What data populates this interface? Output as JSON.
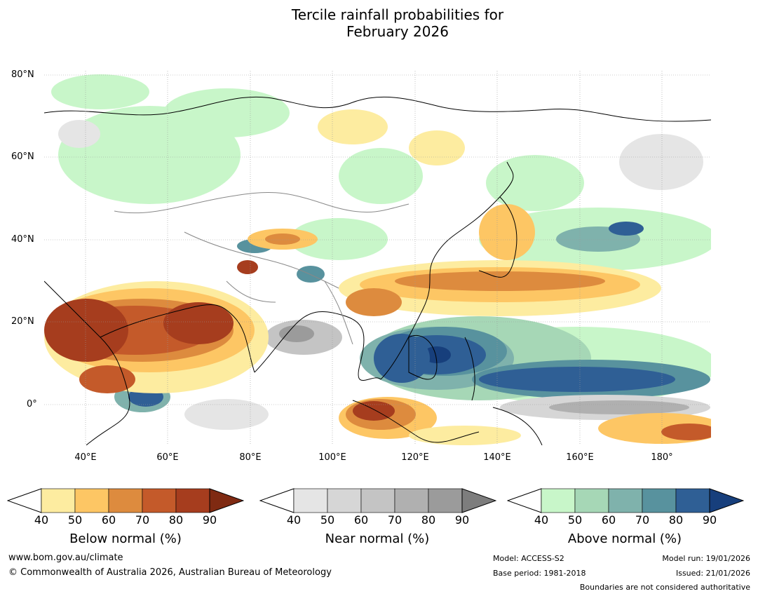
{
  "title_line1": "Tercile rainfall probabilities for",
  "title_line2": "February 2026",
  "lat_labels": [
    "80°N",
    "60°N",
    "40°N",
    "20°N",
    "0°"
  ],
  "lon_labels": [
    "40°E",
    "60°E",
    "80°E",
    "100°E",
    "120°E",
    "140°E",
    "160°E",
    "180°"
  ],
  "colorbars": [
    {
      "label": "Below normal (%)",
      "ticks": [
        "40",
        "50",
        "60",
        "70",
        "80",
        "90"
      ],
      "colors": [
        "#fdeca0",
        "#fdc664",
        "#dd8b3e",
        "#c45a2a",
        "#a63d1e",
        "#7f2a12"
      ]
    },
    {
      "label": "Near normal (%)",
      "ticks": [
        "40",
        "50",
        "60",
        "70",
        "80",
        "90"
      ],
      "colors": [
        "#e5e5e5",
        "#d6d6d6",
        "#c4c4c4",
        "#b0b0b0",
        "#9b9b9b",
        "#7d7d7d"
      ]
    },
    {
      "label": "Above normal (%)",
      "ticks": [
        "40",
        "50",
        "60",
        "70",
        "80",
        "90"
      ],
      "colors": [
        "#c8f6c9",
        "#a6d7b6",
        "#7fb2ac",
        "#58929e",
        "#2f5f95",
        "#173f7c"
      ]
    }
  ],
  "footer": {
    "website": "www.bom.gov.au/climate",
    "copyright": "© Commonwealth of Australia 2026, Australian Bureau of Meteorology",
    "model": "Model: ACCESS-S2",
    "base_period": "Base period: 1981-2018",
    "model_run": "Model run: 19/01/2026",
    "issued": "Issued: 21/01/2026",
    "boundaries_note": "Boundaries are not considered authoritative"
  }
}
